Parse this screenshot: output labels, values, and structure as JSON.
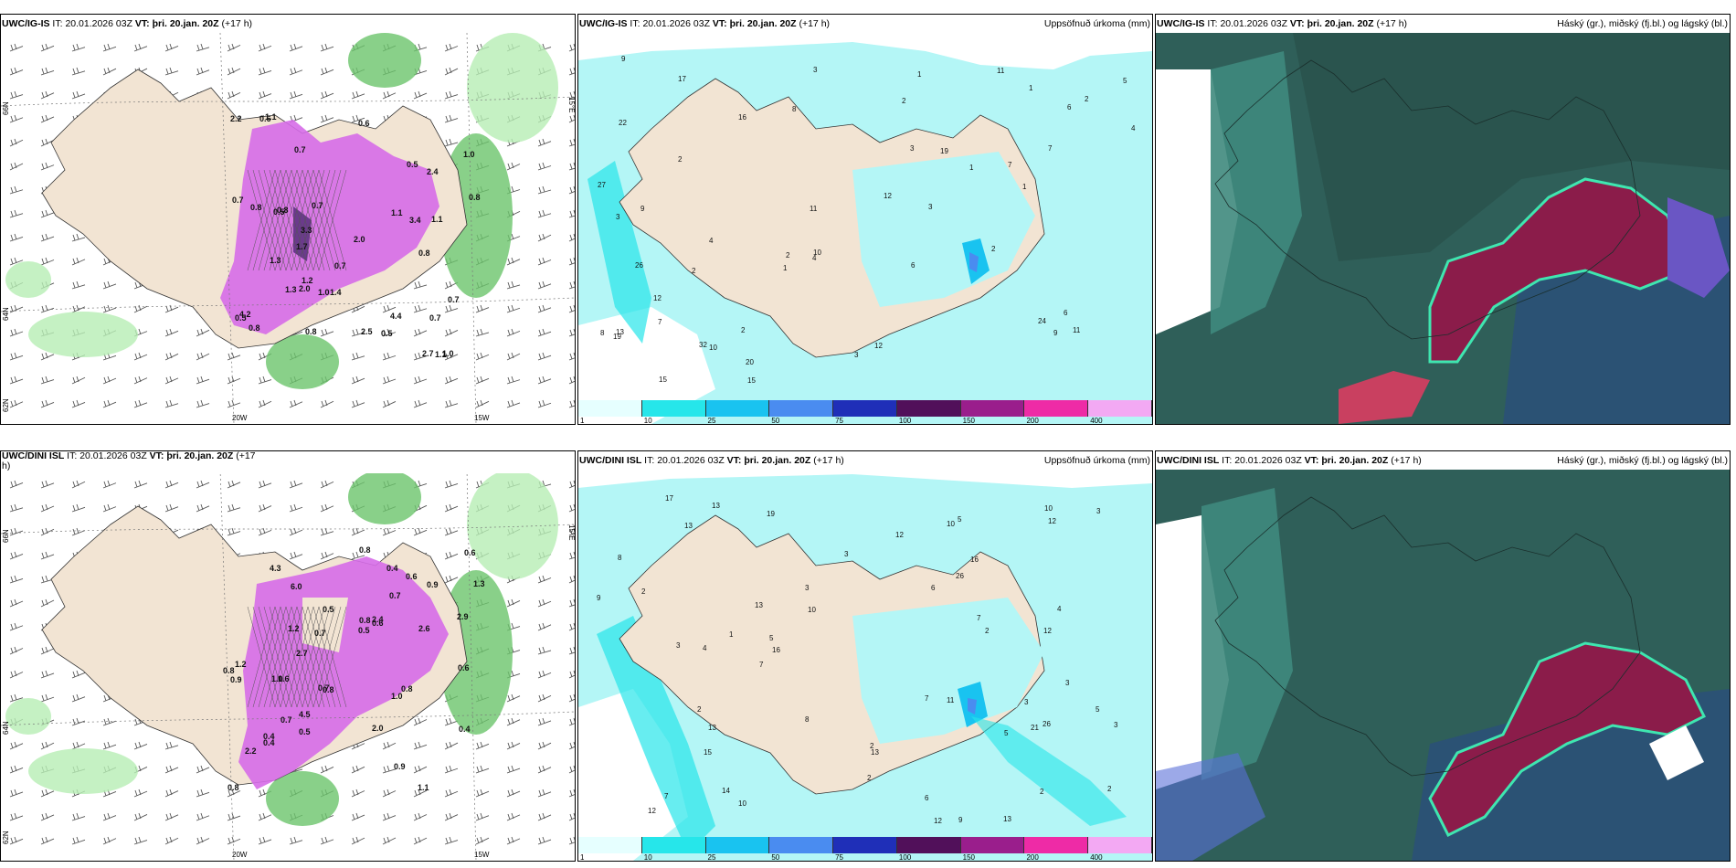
{
  "panels": [
    {
      "id": "ig-is-wind",
      "model": "UWC/IG-IS",
      "it_label": "IT:",
      "it_value": "20.01.2026 03Z",
      "vt_label": "VT:",
      "vt_value": "þri. 20.jan. 20Z",
      "lead": "(+17 h)",
      "right": "",
      "lat_labels": [
        "66N",
        "64N",
        "62N"
      ],
      "lon_labels": [
        "20W",
        "15W"
      ],
      "edge_labels": [
        "15°E"
      ],
      "values": [
        "0.7",
        "0.5",
        "0.6",
        "0.8",
        "1.0",
        "0.7",
        "1.4",
        "1.7",
        "2.0",
        "3.4",
        "1.1",
        "0.6",
        "2.2",
        "2.7",
        "3.3",
        "4.4",
        "2.0",
        "0.8",
        "1.0",
        "0.7",
        "1.1",
        "0.8",
        "0.5",
        "1.3",
        "0.7",
        "1.1",
        "2.5",
        "4.2",
        "2.4",
        "0.5",
        "1.2",
        "1.0",
        "0.8",
        "0.7",
        "0.5",
        "0.7",
        "0.8",
        "1.1",
        "1.3",
        "0.8"
      ]
    },
    {
      "id": "ig-is-precip",
      "model": "UWC/IG-IS",
      "it_label": "IT:",
      "it_value": "20.01.2026 03Z",
      "vt_label": "VT:",
      "vt_value": "þri. 20.jan. 20Z",
      "lead": "(+17 h)",
      "right": "Uppsöfnuð úrkoma (mm)",
      "values": [
        "2",
        "1",
        "4",
        "8",
        "20",
        "22",
        "17",
        "11",
        "19",
        "16",
        "15",
        "7",
        "19",
        "2",
        "1",
        "1",
        "1",
        "3",
        "6",
        "11",
        "2",
        "3",
        "2",
        "3",
        "1",
        "2",
        "2",
        "3",
        "10",
        "12",
        "15",
        "27",
        "26",
        "24",
        "13",
        "6",
        "9",
        "7",
        "5",
        "12",
        "11",
        "3",
        "10",
        "9",
        "2",
        "4",
        "32",
        "7",
        "6",
        "4",
        "8",
        "12",
        "9"
      ]
    },
    {
      "id": "ig-is-clouds",
      "model": "UWC/IG-IS",
      "it_label": "IT:",
      "it_value": "20.01.2026 03Z",
      "vt_label": "VT:",
      "vt_value": "þri. 20.jan. 20Z",
      "lead": "(+17 h)",
      "right": "Háský (gr.), miðský (fj.bl.) og lágský (bl.)"
    },
    {
      "id": "dini-isl-wind",
      "model": "UWC/DINI ISL",
      "it_label": "IT:",
      "it_value": "20.01.2026 03Z",
      "vt_label": "VT:",
      "vt_value": "þri. 20.jan. 20Z",
      "lead": "(+17",
      "lead_wrap": "h)",
      "right": "",
      "lat_labels": [
        "66N",
        "64N",
        "62N"
      ],
      "lon_labels": [
        "20W",
        "15W"
      ],
      "edge_labels": [
        "15°E"
      ],
      "values": [
        "0.9",
        "0.7",
        "1.0",
        "0.5",
        "2.2",
        "0.8",
        "2.0",
        "2.4",
        "2.7",
        "4.5",
        "4.3",
        "1.2",
        "0.8",
        "1.6",
        "2.6",
        "0.9",
        "0.8",
        "0.4",
        "0.6",
        "0.4",
        "1.1",
        "0.8",
        "6.0",
        "2.9",
        "0.5",
        "0.7",
        "0.6",
        "1.2",
        "0.6",
        "1.0",
        "0.8",
        "0.7",
        "1.3",
        "0.9",
        "0.4",
        "0.7",
        "0.5",
        "0.4",
        "0.8",
        "0.6"
      ]
    },
    {
      "id": "dini-isl-precip",
      "model": "UWC/DINI ISL",
      "it_label": "IT:",
      "it_value": "20.01.2026 03Z",
      "vt_label": "VT:",
      "vt_value": "þri. 20.jan. 20Z",
      "lead": "(+17 h)",
      "right": "Uppsöfnuð úrkoma (mm)",
      "values": [
        "5",
        "13",
        "13",
        "7",
        "2",
        "13",
        "19",
        "16",
        "12",
        "12",
        "11",
        "12",
        "9",
        "7",
        "10",
        "13",
        "15",
        "14",
        "10",
        "3",
        "2",
        "3",
        "2",
        "3",
        "3",
        "6",
        "5",
        "8",
        "2",
        "1",
        "2",
        "4",
        "2",
        "6",
        "3",
        "4",
        "8",
        "10",
        "16",
        "17",
        "21",
        "26",
        "13",
        "13",
        "12",
        "7",
        "10",
        "5",
        "5",
        "9",
        "7",
        "2",
        "3",
        "26",
        "12",
        "3"
      ]
    },
    {
      "id": "dini-isl-clouds",
      "model": "UWC/DINI ISL",
      "it_label": "IT:",
      "it_value": "20.01.2026 03Z",
      "vt_label": "VT:",
      "vt_value": "þri. 20.jan. 20Z",
      "lead": "(+17 h)",
      "right": "Háský (gr.), miðský (fj.bl.) og lágský (bl.)"
    }
  ],
  "precip_legend": {
    "ticks": [
      "1",
      "10",
      "25",
      "50",
      "75",
      "100",
      "150",
      "200",
      "400"
    ],
    "colors": [
      "#e6ffff",
      "#26e6ea",
      "#19c3f0",
      "#4a8cf0",
      "#1f2fb8",
      "#51105a",
      "#9a1e8c",
      "#ee2ba6",
      "#f3a9f3"
    ]
  },
  "colors": {
    "land": "#f2e4d3",
    "sea_white": "#ffffff",
    "precip_light": "#b4f6f6",
    "wind_magenta": "#d66be8",
    "wind_green": "#3ba34a",
    "cloud_dark": "#2f5f59",
    "cloud_red": "#8b1c4a"
  }
}
